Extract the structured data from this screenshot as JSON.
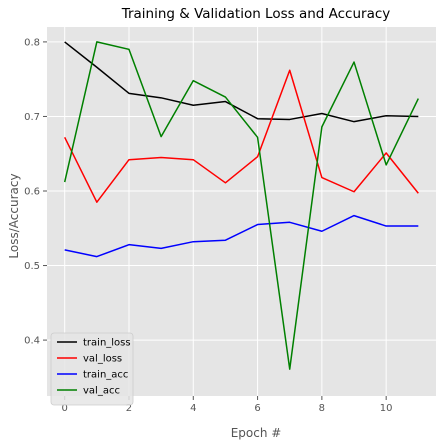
{
  "chart_data": {
    "type": "line",
    "title": "Training & Validation Loss and Accuracy",
    "xlabel": "Epoch #",
    "ylabel": "Loss/Accuracy",
    "x": [
      0,
      1,
      2,
      3,
      4,
      5,
      6,
      7,
      8,
      9,
      10,
      11
    ],
    "xlim": [
      -0.55,
      11.55
    ],
    "ylim": [
      0.325,
      0.82
    ],
    "xticks": [
      0,
      2,
      4,
      6,
      8,
      10
    ],
    "yticks": [
      0.4,
      0.5,
      0.6,
      0.7,
      0.8
    ],
    "ytick_labels": [
      "0.4",
      "0.5",
      "0.6",
      "0.7",
      "0.8"
    ],
    "grid": true,
    "style": "ggplot",
    "legend_position": "lower-left",
    "series": [
      {
        "name": "train_loss",
        "color": "#000000",
        "values": [
          0.8,
          0.766,
          0.731,
          0.725,
          0.715,
          0.72,
          0.697,
          0.696,
          0.704,
          0.693,
          0.701,
          0.7
        ]
      },
      {
        "name": "val_loss",
        "color": "#ff0000",
        "values": [
          0.672,
          0.585,
          0.642,
          0.645,
          0.642,
          0.611,
          0.646,
          0.762,
          0.618,
          0.599,
          0.651,
          0.597
        ]
      },
      {
        "name": "train_acc",
        "color": "#0000ff",
        "values": [
          0.521,
          0.512,
          0.528,
          0.523,
          0.532,
          0.534,
          0.555,
          0.558,
          0.546,
          0.567,
          0.553,
          0.553
        ]
      },
      {
        "name": "val_acc",
        "color": "#008000",
        "values": [
          0.612,
          0.8,
          0.79,
          0.673,
          0.748,
          0.726,
          0.672,
          0.361,
          0.686,
          0.773,
          0.635,
          0.724
        ]
      }
    ]
  }
}
